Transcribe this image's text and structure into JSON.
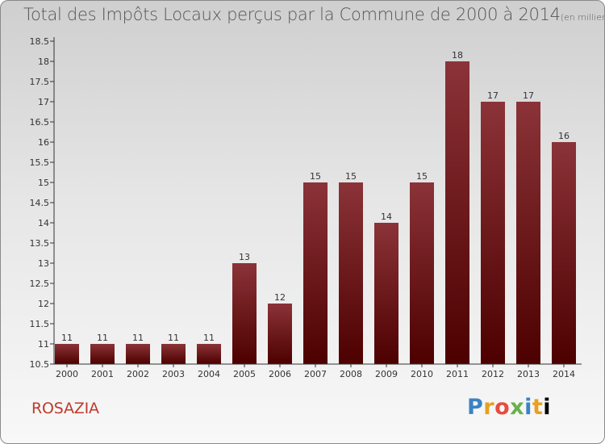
{
  "title": "Total des Impôts Locaux perçus par la Commune de 2000 à 2014",
  "unit": "(en milliers d'€)",
  "commune": "ROSAZIA",
  "logo": [
    "P",
    "r",
    "o",
    "x",
    "i",
    "t",
    "i"
  ],
  "colors": {
    "bar_top": "#8b3338",
    "bar_bottom": "#4d0000",
    "axis": "#333333",
    "commune": "#c0392b"
  },
  "chart_data": {
    "type": "bar",
    "title": "Total des Impôts Locaux perçus par la Commune de 2000 à 2014",
    "ylabel": "en milliers d'€",
    "xlabel": "",
    "categories": [
      "2000",
      "2001",
      "2002",
      "2003",
      "2004",
      "2005",
      "2006",
      "2007",
      "2008",
      "2009",
      "2010",
      "2011",
      "2012",
      "2013",
      "2014"
    ],
    "values": [
      11,
      11,
      11,
      11,
      11,
      13,
      12,
      15,
      15,
      14,
      15,
      18,
      17,
      17,
      16
    ],
    "labels": [
      "11",
      "11",
      "11",
      "11",
      "11",
      "13",
      "12",
      "15",
      "15",
      "14",
      "15",
      "18",
      "17",
      "17",
      "16"
    ],
    "ylim": [
      10.5,
      18.5
    ],
    "yticks": [
      10.5,
      11,
      11.5,
      12,
      12.5,
      13,
      13.5,
      14,
      14.5,
      15,
      15.5,
      16,
      16.5,
      17,
      17.5,
      18,
      18.5
    ],
    "ytick_labels": [
      "10.5",
      "11",
      "11.5",
      "12",
      "12.5",
      "13",
      "13.5",
      "14",
      "14.5",
      "15",
      "15.5",
      "16",
      "16.5",
      "17",
      "17.5",
      "18",
      "18.5"
    ]
  }
}
